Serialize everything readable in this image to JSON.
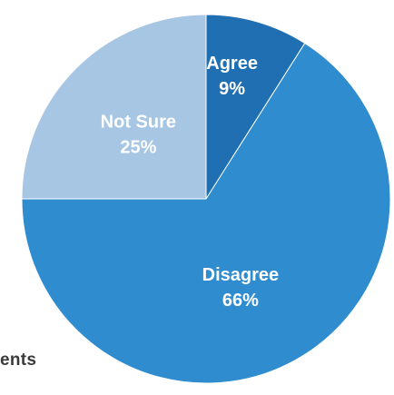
{
  "chart_data": {
    "type": "pie",
    "title": "",
    "start": "12 o'clock, clockwise",
    "slices": [
      {
        "label": "Agree",
        "value": 9,
        "value_label": "9%",
        "color": "#1f6fb2"
      },
      {
        "label": "Disagree",
        "value": 66,
        "value_label": "66%",
        "color": "#2e8ccf"
      },
      {
        "label": "Not Sure",
        "value": 25,
        "value_label": "25%",
        "color": "#a7c6e3"
      }
    ]
  },
  "footer": {
    "partial_text": "ents"
  }
}
